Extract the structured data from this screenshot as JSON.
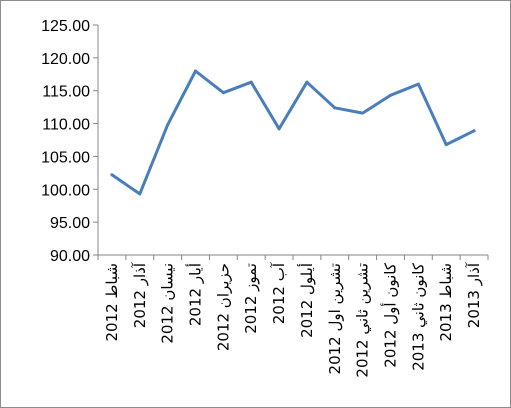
{
  "chart_data": {
    "type": "line",
    "title": "",
    "xlabel": "",
    "ylabel": "",
    "ylim": [
      90,
      125
    ],
    "yticks": [
      "90.00",
      "95.00",
      "100.00",
      "105.00",
      "110.00",
      "115.00",
      "120.00",
      "125.00"
    ],
    "grid": false,
    "legend": "none",
    "categories": [
      "شباط 2012",
      "آذار 2012",
      "نيسان 2012",
      "أيار 2012",
      "حزيران 2012",
      "تموز 2012",
      "آب 2012",
      "أيلول 2012",
      "تشرين اول 2012",
      "تشرين ثاني 2012",
      "كانون أول 2012",
      "كانون ثاني 2013",
      "شباط 2013",
      "آذار 2013"
    ],
    "series": [
      {
        "values": [
          102.2,
          99.3,
          109.8,
          118.0,
          114.7,
          116.3,
          109.2,
          116.3,
          112.4,
          111.6,
          114.3,
          116.0,
          106.8,
          108.9
        ],
        "color": "#4a7ebb"
      }
    ]
  }
}
